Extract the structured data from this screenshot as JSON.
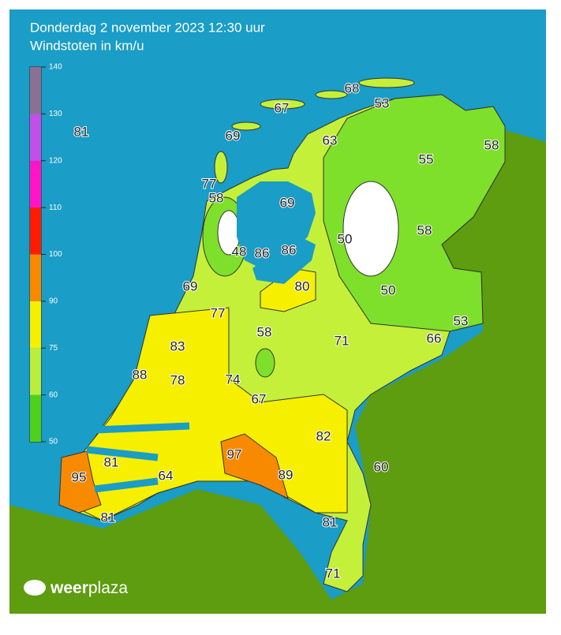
{
  "header": {
    "title": "Donderdag 2 november 2023 12:30 uur",
    "subtitle": "Windstoten in km/u"
  },
  "legend": {
    "ticks": [
      50,
      60,
      75,
      90,
      100,
      110,
      120,
      130,
      140
    ],
    "colors": [
      "#4fd11c",
      "#b9ef3c",
      "#f6ef00",
      "#f88a00",
      "#ff1a00",
      "#ff14c8",
      "#c050e8",
      "#8c7092"
    ]
  },
  "stations": [
    81,
    68,
    53,
    67,
    69,
    63,
    58,
    55,
    77,
    58,
    69,
    50,
    58,
    48,
    86,
    86,
    80,
    69,
    50,
    77,
    53,
    83,
    58,
    71,
    66,
    88,
    78,
    74,
    67,
    82,
    97,
    95,
    81,
    64,
    89,
    60,
    81,
    81,
    71
  ],
  "logo": {
    "bold": "weer",
    "light": "plaza"
  }
}
